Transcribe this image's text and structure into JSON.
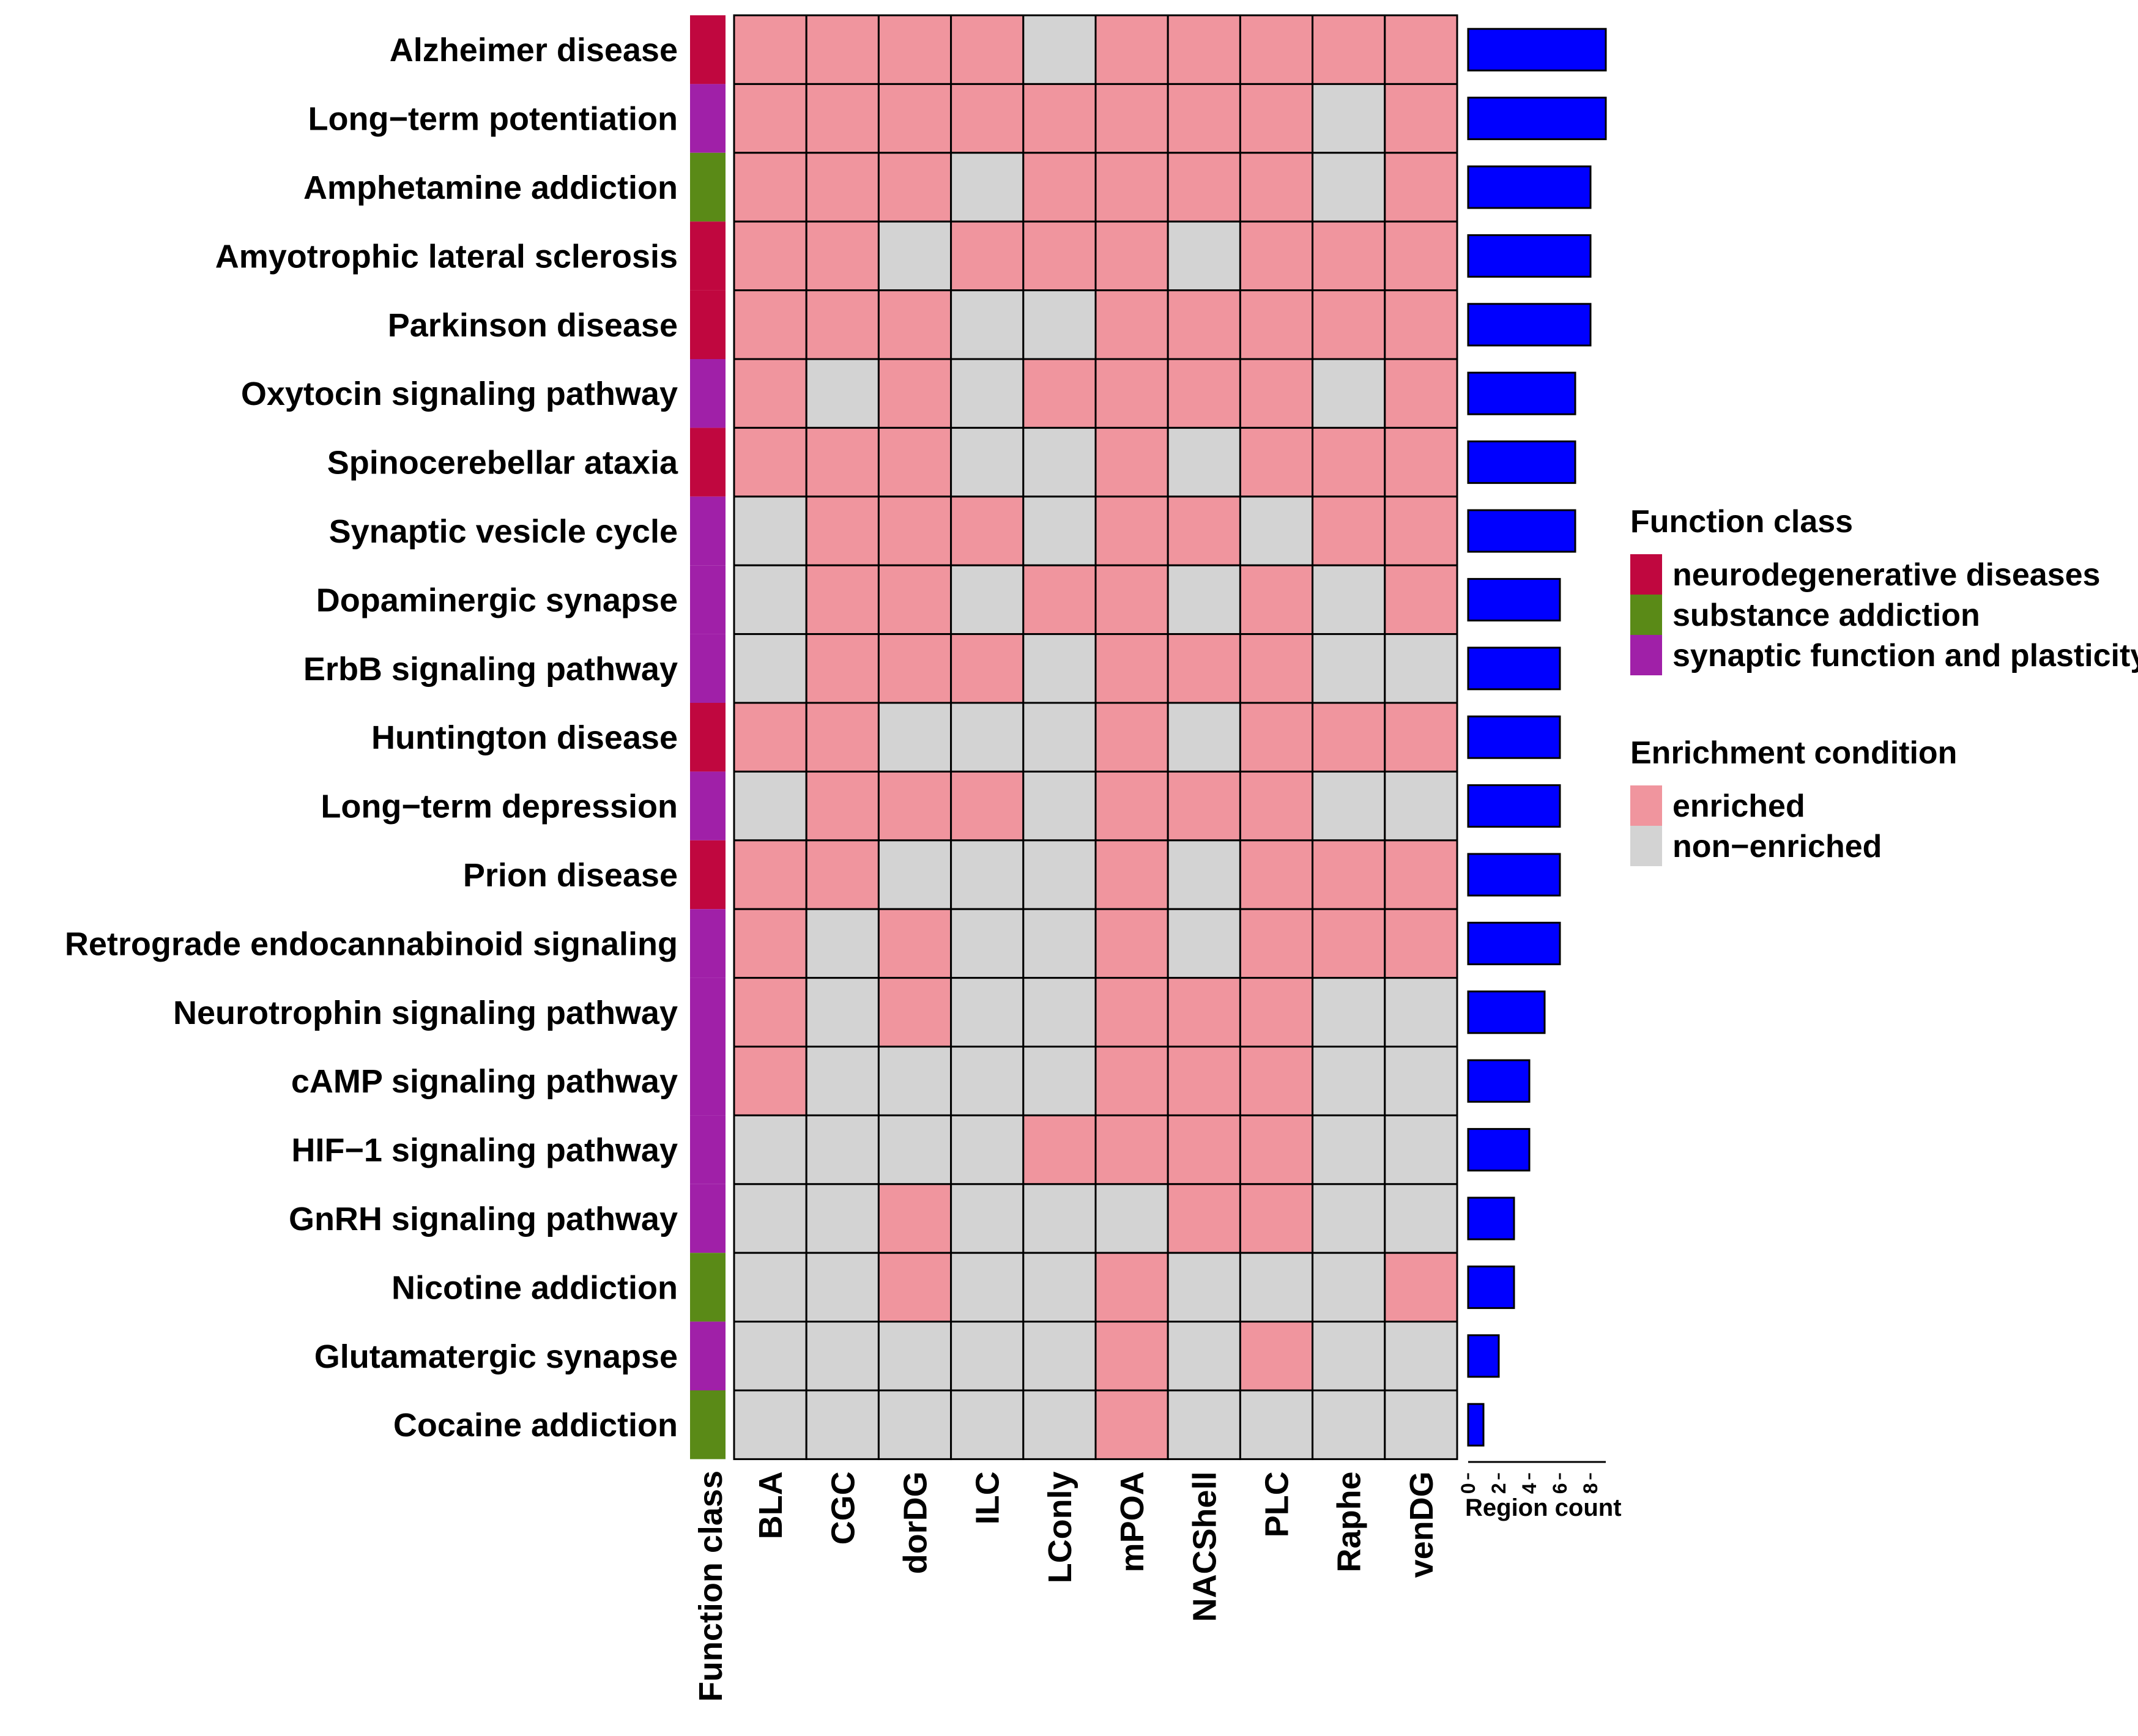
{
  "chart_data": {
    "type": "heatmap",
    "row_labels": [
      "Alzheimer disease",
      "Long−term potentiation",
      "Amphetamine addiction",
      "Amyotrophic lateral sclerosis",
      "Parkinson disease",
      "Oxytocin signaling pathway",
      "Spinocerebellar ataxia",
      "Synaptic vesicle cycle",
      "Dopaminergic synapse",
      "ErbB signaling pathway",
      "Huntington disease",
      "Long−term depression",
      "Prion disease",
      "Retrograde endocannabinoid signaling",
      "Neurotrophin signaling pathway",
      "cAMP signaling pathway",
      "HIF−1 signaling pathway",
      "GnRH signaling pathway",
      "Nicotine addiction",
      "Glutamatergic synapse",
      "Cocaine addiction"
    ],
    "columns": [
      "BLA",
      "CGC",
      "dorDG",
      "ILC",
      "LConly",
      "mPOA",
      "NACShell",
      "PLC",
      "Raphe",
      "venDG"
    ],
    "function_class": [
      "nd",
      "sf",
      "sa",
      "nd",
      "nd",
      "sf",
      "nd",
      "sf",
      "sf",
      "sf",
      "nd",
      "sf",
      "nd",
      "sf",
      "sf",
      "sf",
      "sf",
      "sf",
      "sa",
      "sf",
      "sa"
    ],
    "matrix": [
      [
        1,
        1,
        1,
        1,
        0,
        1,
        1,
        1,
        1,
        1
      ],
      [
        1,
        1,
        1,
        1,
        1,
        1,
        1,
        1,
        0,
        1
      ],
      [
        1,
        1,
        1,
        0,
        1,
        1,
        1,
        1,
        0,
        1
      ],
      [
        1,
        1,
        0,
        1,
        1,
        1,
        0,
        1,
        1,
        1
      ],
      [
        1,
        1,
        1,
        0,
        0,
        1,
        1,
        1,
        1,
        1
      ],
      [
        1,
        0,
        1,
        0,
        1,
        1,
        1,
        1,
        0,
        1
      ],
      [
        1,
        1,
        1,
        0,
        0,
        1,
        0,
        1,
        1,
        1
      ],
      [
        0,
        1,
        1,
        1,
        0,
        1,
        1,
        0,
        1,
        1
      ],
      [
        0,
        1,
        1,
        0,
        1,
        1,
        0,
        1,
        0,
        1
      ],
      [
        0,
        1,
        1,
        1,
        0,
        1,
        1,
        1,
        0,
        0
      ],
      [
        1,
        1,
        0,
        0,
        0,
        1,
        0,
        1,
        1,
        1
      ],
      [
        0,
        1,
        1,
        1,
        0,
        1,
        1,
        1,
        0,
        0
      ],
      [
        1,
        1,
        0,
        0,
        0,
        1,
        0,
        1,
        1,
        1
      ],
      [
        1,
        0,
        1,
        0,
        0,
        1,
        0,
        1,
        1,
        1
      ],
      [
        1,
        0,
        1,
        0,
        0,
        1,
        1,
        1,
        0,
        0
      ],
      [
        1,
        0,
        0,
        0,
        0,
        1,
        1,
        1,
        0,
        0
      ],
      [
        0,
        0,
        0,
        0,
        1,
        1,
        1,
        1,
        0,
        0
      ],
      [
        0,
        0,
        1,
        0,
        0,
        0,
        1,
        1,
        0,
        0
      ],
      [
        0,
        0,
        1,
        0,
        0,
        1,
        0,
        0,
        0,
        1
      ],
      [
        0,
        0,
        0,
        0,
        0,
        1,
        0,
        1,
        0,
        0
      ],
      [
        0,
        0,
        0,
        0,
        0,
        1,
        0,
        0,
        0,
        0
      ]
    ],
    "region_count": [
      9,
      9,
      8,
      8,
      8,
      7,
      7,
      7,
      6,
      6,
      6,
      6,
      6,
      6,
      5,
      4,
      4,
      3,
      3,
      2,
      1
    ],
    "bar_axis": {
      "label": "Region count",
      "ticks": [
        0,
        2,
        4,
        6,
        8
      ],
      "range": [
        0,
        9
      ]
    },
    "function_class_axis_label": "Function class",
    "legend": {
      "function_class": {
        "title": "Function class",
        "items": [
          {
            "key": "nd",
            "label": "neurodegenerative diseases",
            "color": "#C0073F"
          },
          {
            "key": "sa",
            "label": "substance addiction",
            "color": "#5A8A17"
          },
          {
            "key": "sf",
            "label": "synaptic function and plasticity",
            "color": "#A020A8"
          }
        ]
      },
      "enrichment": {
        "title": "Enrichment condition",
        "items": [
          {
            "key": 1,
            "label": "enriched",
            "color": "#F0959E"
          },
          {
            "key": 0,
            "label": "non−enriched",
            "color": "#D3D3D3"
          }
        ]
      }
    },
    "bar_color": "#0000FF"
  }
}
